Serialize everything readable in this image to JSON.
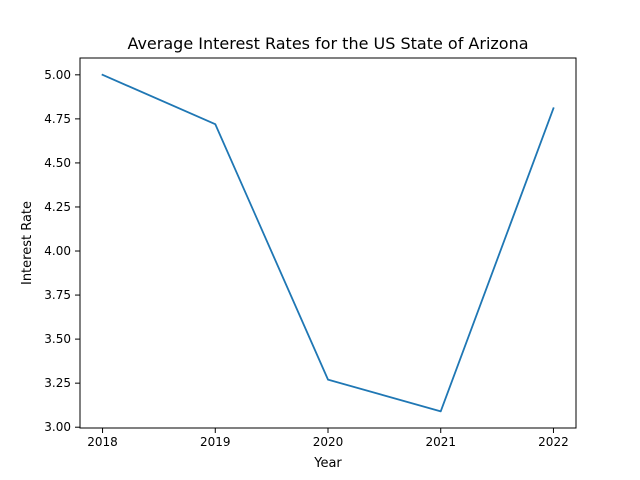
{
  "chart_data": {
    "type": "line",
    "title": "Average Interest Rates for the US State of Arizona",
    "xlabel": "Year",
    "ylabel": "Interest Rate",
    "x": [
      2018,
      2019,
      2020,
      2021,
      2022
    ],
    "series": [
      {
        "values": [
          5.0,
          4.72,
          3.27,
          3.09,
          4.81
        ],
        "color": "#1f77b4"
      }
    ],
    "x_ticks": [
      "2018",
      "2019",
      "2020",
      "2021",
      "2022"
    ],
    "y_ticks": [
      "3.00",
      "3.25",
      "3.50",
      "3.75",
      "4.00",
      "4.25",
      "4.50",
      "4.75",
      "5.00"
    ],
    "xlim": [
      2017.8,
      2022.2
    ],
    "ylim": [
      2.9955,
      5.0955
    ],
    "grid": false,
    "legend": "none"
  }
}
